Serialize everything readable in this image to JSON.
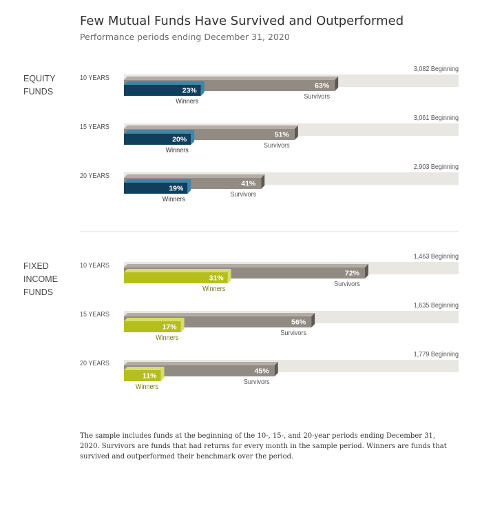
{
  "chart_data": {
    "type": "bar",
    "title": "Few Mutual Funds Have Survived and Outperformed",
    "subtitle": "Performance periods ending December 31, 2020",
    "x_unit": "percent of beginning funds",
    "xlim": [
      0,
      100
    ],
    "groups": [
      {
        "name": "EQUITY FUNDS",
        "name_lines": [
          "EQUITY",
          "FUNDS"
        ],
        "rows": [
          {
            "period": "10 YEARS",
            "beginning": "3,082 Beginning",
            "survivors": 63,
            "winners": 23
          },
          {
            "period": "15 YEARS",
            "beginning": "3,061 Beginning",
            "survivors": 51,
            "winners": 20
          },
          {
            "period": "20 YEARS",
            "beginning": "2,903 Beginning",
            "survivors": 41,
            "winners": 19
          }
        ]
      },
      {
        "name": "FIXED INCOME FUNDS",
        "name_lines": [
          "FIXED",
          "INCOME",
          "FUNDS"
        ],
        "rows": [
          {
            "period": "10 YEARS",
            "beginning": "1,463 Beginning",
            "survivors": 72,
            "winners": 31
          },
          {
            "period": "15 YEARS",
            "beginning": "1,635 Beginning",
            "survivors": 56,
            "winners": 17
          },
          {
            "period": "20 YEARS",
            "beginning": "1,779 Beginning",
            "survivors": 45,
            "winners": 11
          }
        ]
      }
    ],
    "series_labels": {
      "winners": "Winners",
      "survivors": "Survivors"
    },
    "colors": {
      "background_bar": "#e9e7e2",
      "survivors": "#928b84",
      "survivors_top": "#b3ada6",
      "survivors_side": "#5e5852",
      "winners_equity": "#0f3f5c",
      "winners_equity_side": "#3d86a8",
      "winners_fixed": "#b4bf1e",
      "winners_fixed_side": "#d7df6a",
      "label_text": "#555555",
      "group_text": "#4a4a4a"
    }
  },
  "footnote": "The sample includes funds at the beginning of the 10-, 15-, and 20-year periods ending December 31, 2020. Survivors are funds that had returns for every month in the sample period. Winners are funds that survived and outperformed their benchmark over the period."
}
